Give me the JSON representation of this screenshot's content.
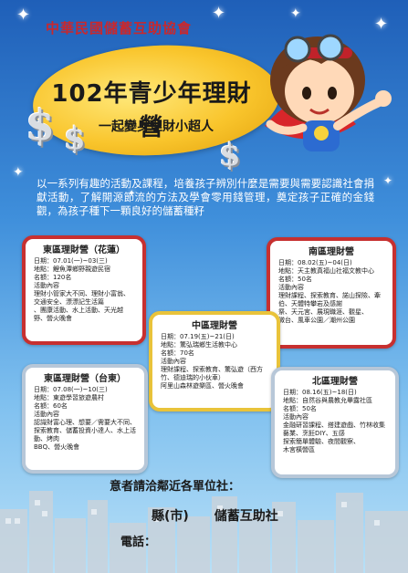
{
  "header": {
    "org": "中華民國儲蓄互助協會",
    "title": "102年青少年理財營",
    "subtitle": "一起變身理財小超人"
  },
  "intro": "以一系列有趣的活動及課程，培養孩子辨別什麼是需要與需要認識社會捐獻活動，了解開源節流的方法及學會零用錢管理，奠定孩子正確的金錢觀，為孩子種下一顆良好的儲蓄種籽",
  "camps": {
    "east_hualien": {
      "title": "東區理財營（花蓮）",
      "lines": [
        "日期：07.01(一)~03(三)",
        "地點：鯉魚潭鄉野親遊民宿",
        "名額：120名",
        "活動內容",
        "理財小管家大不同、理財小富翁、交通安全、漂漂記生活篇",
        "、團康活動、水上活動、天光越野、營火晚會"
      ]
    },
    "south": {
      "title": "南區理財營",
      "lines": [
        "日期：08.02(五)~04(日)",
        "地點：天主教真福山社福文教中心",
        "名額：50名",
        "活動內容",
        "理財課程、探索教育、諾山探險、牽伯、天體特攀岩及感謝",
        "祭、天元宮、展現職涯、觀星、",
        "微台、風車公園／潮州公園"
      ]
    },
    "central": {
      "title": "中區理財營",
      "lines": [
        "日期：07.19(五)~21(日)",
        "地點：驚弘瑞鄉生活教中心",
        "名額：70名",
        "活動內容",
        "理財課程、探索教育、驚弘遊（西方竹、德迪瑞的小伙車）",
        "阿里山森林遊樂區、營火晚會"
      ]
    },
    "east_taitung": {
      "title": "東區理財營（台東）",
      "lines": [
        "日期：07.08(一)~10(三)",
        "地點：東遊學習旅遊農村",
        "名額：60名",
        "活動內容",
        "認識財富心理、想要／需要大不同、探索教育、儲蓄投資小達人、水上活動、烤肉",
        "BBQ、營火晚會"
      ]
    },
    "north": {
      "title": "北區理財營",
      "lines": [
        "日期：08.16(五)~18(日)",
        "地點：自然谷與農教允畢露社區",
        "名額：50名",
        "活動內容",
        "金融研習課程、搭建遊戲、竹林收集藝業、烹飪DIY、五感",
        "探索簡單體驗、夜間觀察、",
        "木宮橫營區"
      ]
    }
  },
  "contact": {
    "line1": "意者請洽鄰近各單位社：",
    "line2": "縣(市)　　儲蓄互助社",
    "line3": "電話："
  }
}
